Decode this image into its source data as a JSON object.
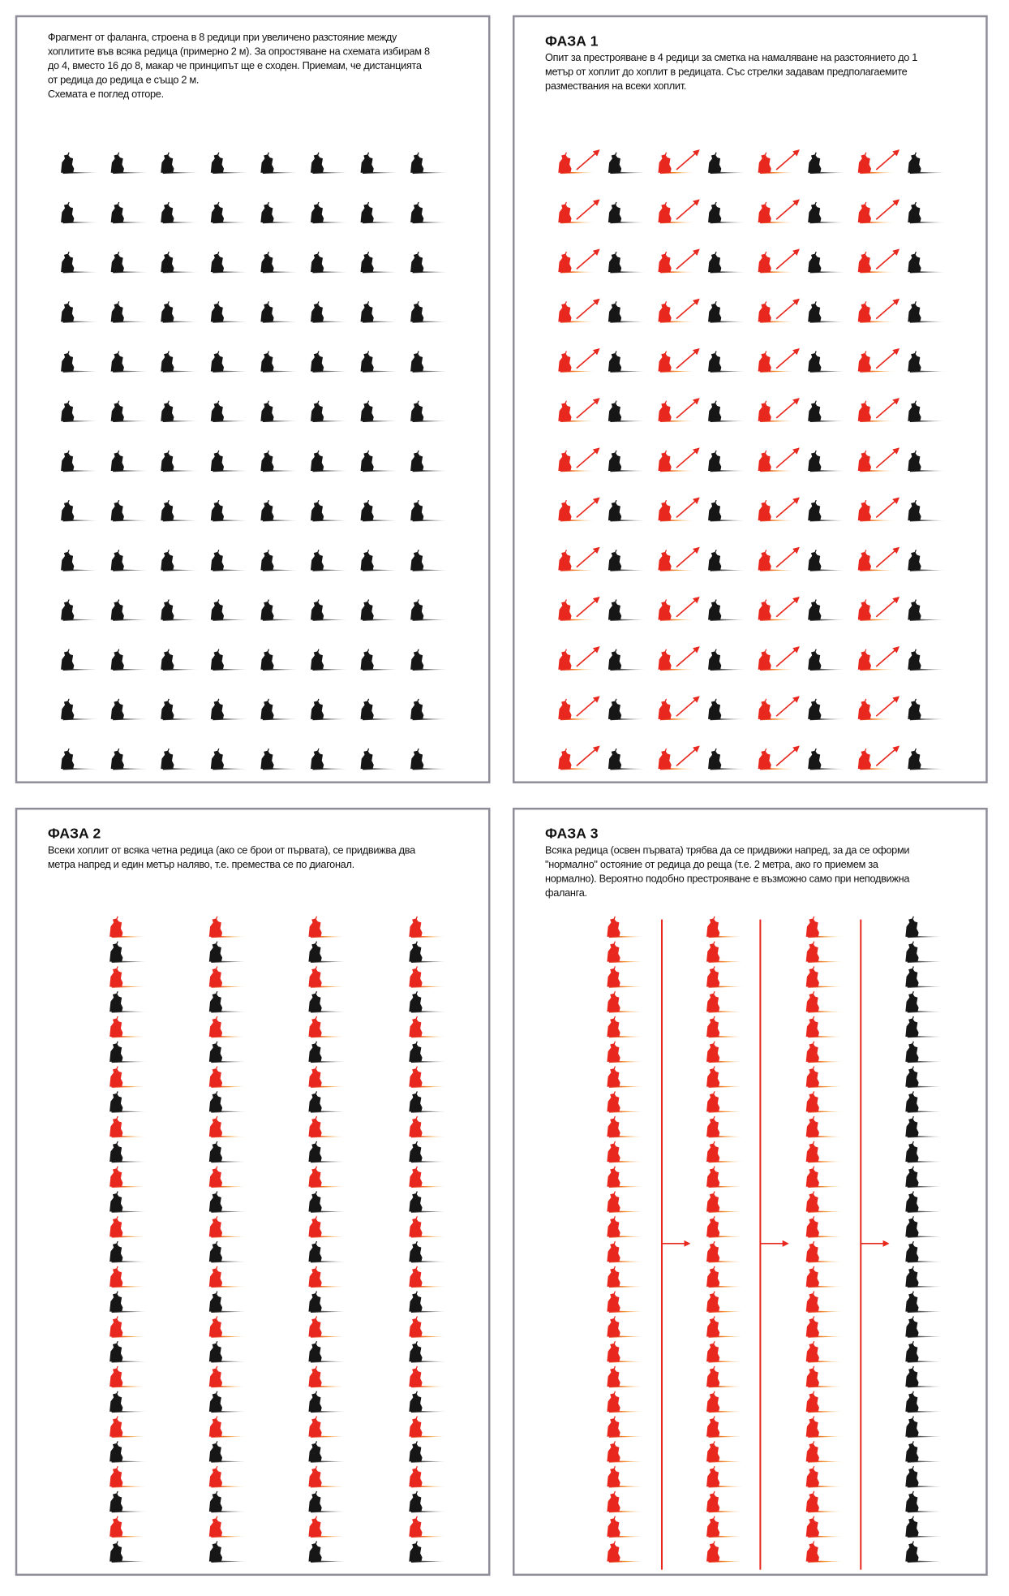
{
  "panels": [
    {
      "paragraphs": [
        "Фрагмент от фаланга, строена в 8 редици при увеличено разстояние между хоплитите във всяка редица (примерно 2 м). За опростяване на схемата избирам 8 до 4, вместо 16 до 8, макар че принципът ще е сходен. Приемам, че дистанцията от редица до редица е също 2 м.",
        "Схемата е поглед отгоре."
      ]
    },
    {
      "title": "ФАЗА 1",
      "paragraphs": [
        "Опит за престрояване в 4 редици за сметка на намаляване на разстоянието до 1 метър от хоплит до хоплит в редицата. Със стрелки задавам предполагаемите размествания на всеки хоплит."
      ]
    },
    {
      "title": "ФАЗА 2",
      "paragraphs": [
        "Всеки хоплит от всяка четна редица (ако се брои от първата), се придвижва два метра напред и един метър наляво, т.е. премества се по диагонал."
      ]
    },
    {
      "title": "ФАЗА 3",
      "paragraphs": [
        "Всяка редица (освен първата) трябва да се придвижи напред, за да се оформи \"нормално\" остояние от редица до реща (т.е. 2 метра, ако го приемем за нормално). Вероятно подобно престрояване е възможно само при неподвижна фаланга."
      ]
    }
  ]
}
